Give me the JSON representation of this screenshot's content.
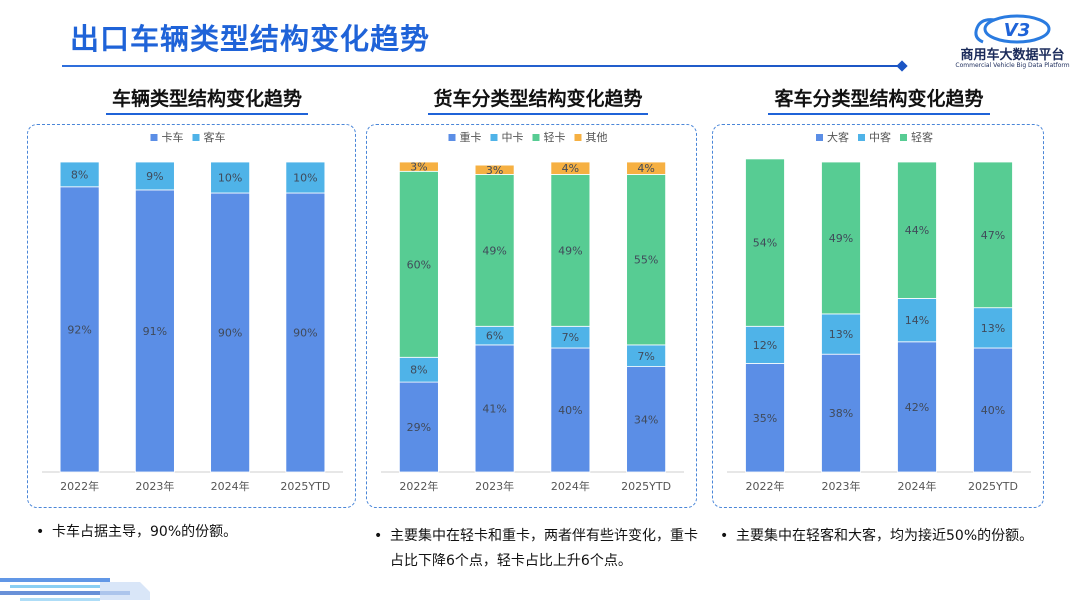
{
  "header": {
    "title": "出口车辆类型结构变化趋势",
    "logo_cn": "商用车大数据平台",
    "logo_en": "Commercial Vehicle Big Data Platform",
    "logo_mark": "V3"
  },
  "sections": [
    {
      "title": "车辆类型结构变化趋势",
      "note": "卡车占据主导，90%的份额。"
    },
    {
      "title": "货车分类型结构变化趋势",
      "note": "主要集中在轻卡和重卡，两者伴有些许变化，重卡占比下降6个点，轻卡占比上升6个点。"
    },
    {
      "title": "客车分类型结构变化趋势",
      "note": "主要集中在轻客和大客，均为接近50%的份额。"
    }
  ],
  "colors": {
    "heavy_blue": "#5b8ee6",
    "light_blue": "#4fb3e8",
    "green": "#57cc93",
    "orange": "#f6b042",
    "accent": "#1f63d8"
  },
  "chart_data": [
    {
      "type": "bar",
      "stacked": true,
      "title": "车辆类型结构变化趋势",
      "categories": [
        "2022年",
        "2023年",
        "2024年",
        "2025YTD"
      ],
      "series": [
        {
          "name": "卡车",
          "values": [
            92,
            91,
            90,
            90
          ],
          "color": "#5b8ee6"
        },
        {
          "name": "客车",
          "values": [
            8,
            9,
            10,
            10
          ],
          "color": "#4fb3e8"
        }
      ],
      "ylim": [
        0,
        100
      ],
      "legend": "top-center",
      "grid": false
    },
    {
      "type": "bar",
      "stacked": true,
      "title": "货车分类型结构变化趋势",
      "categories": [
        "2022年",
        "2023年",
        "2024年",
        "2025YTD"
      ],
      "series": [
        {
          "name": "重卡",
          "values": [
            29,
            41,
            40,
            34
          ],
          "color": "#5b8ee6"
        },
        {
          "name": "中卡",
          "values": [
            8,
            6,
            7,
            7
          ],
          "color": "#4fb3e8"
        },
        {
          "name": "轻卡",
          "values": [
            60,
            49,
            49,
            55
          ],
          "color": "#57cc93"
        },
        {
          "name": "其他",
          "values": [
            3,
            3,
            4,
            4
          ],
          "color": "#f6b042"
        }
      ],
      "ylim": [
        0,
        100
      ],
      "legend": "top-center",
      "grid": false
    },
    {
      "type": "bar",
      "stacked": true,
      "title": "客车分类型结构变化趋势",
      "categories": [
        "2022年",
        "2023年",
        "2024年",
        "2025YTD"
      ],
      "series": [
        {
          "name": "大客",
          "values": [
            35,
            38,
            42,
            40
          ],
          "color": "#5b8ee6"
        },
        {
          "name": "中客",
          "values": [
            12,
            13,
            14,
            13
          ],
          "color": "#4fb3e8"
        },
        {
          "name": "轻客",
          "values": [
            54,
            49,
            44,
            47
          ],
          "color": "#57cc93"
        }
      ],
      "ylim": [
        0,
        100
      ],
      "legend": "top-center",
      "grid": false
    }
  ]
}
